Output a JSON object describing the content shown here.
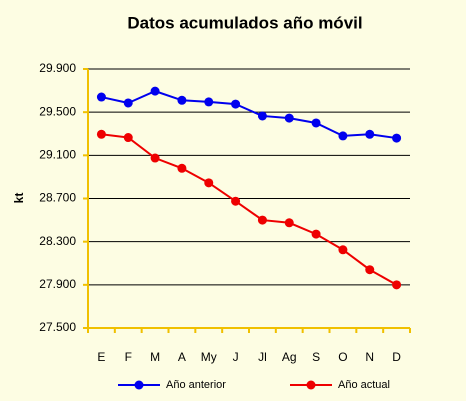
{
  "chart_data": {
    "type": "line",
    "title": "Datos acumulados año móvil",
    "ylabel": "kt",
    "categories": [
      "E",
      "F",
      "M",
      "A",
      "My",
      "J",
      "Jl",
      "Ag",
      "S",
      "O",
      "N",
      "D"
    ],
    "series": [
      {
        "name": "Año anterior",
        "color": "#0000ee",
        "values": [
          29640,
          29585,
          29695,
          29610,
          29595,
          29575,
          29465,
          29445,
          29400,
          29280,
          29295,
          29260
        ]
      },
      {
        "name": "Año actual",
        "color": "#ee0000",
        "values": [
          29295,
          29265,
          29075,
          28980,
          28845,
          28675,
          28500,
          28475,
          28370,
          28225,
          28040,
          27900
        ]
      }
    ],
    "ylim": [
      27500,
      29900
    ],
    "yticks": [
      {
        "value": 27500,
        "label": "27.500"
      },
      {
        "value": 27900,
        "label": "27.900"
      },
      {
        "value": 28300,
        "label": "28.300"
      },
      {
        "value": 28700,
        "label": "28.700"
      },
      {
        "value": 29100,
        "label": "29.100"
      },
      {
        "value": 29500,
        "label": "29.500"
      },
      {
        "value": 29900,
        "label": "29.900"
      }
    ],
    "grid": true,
    "legend": "bottom"
  }
}
